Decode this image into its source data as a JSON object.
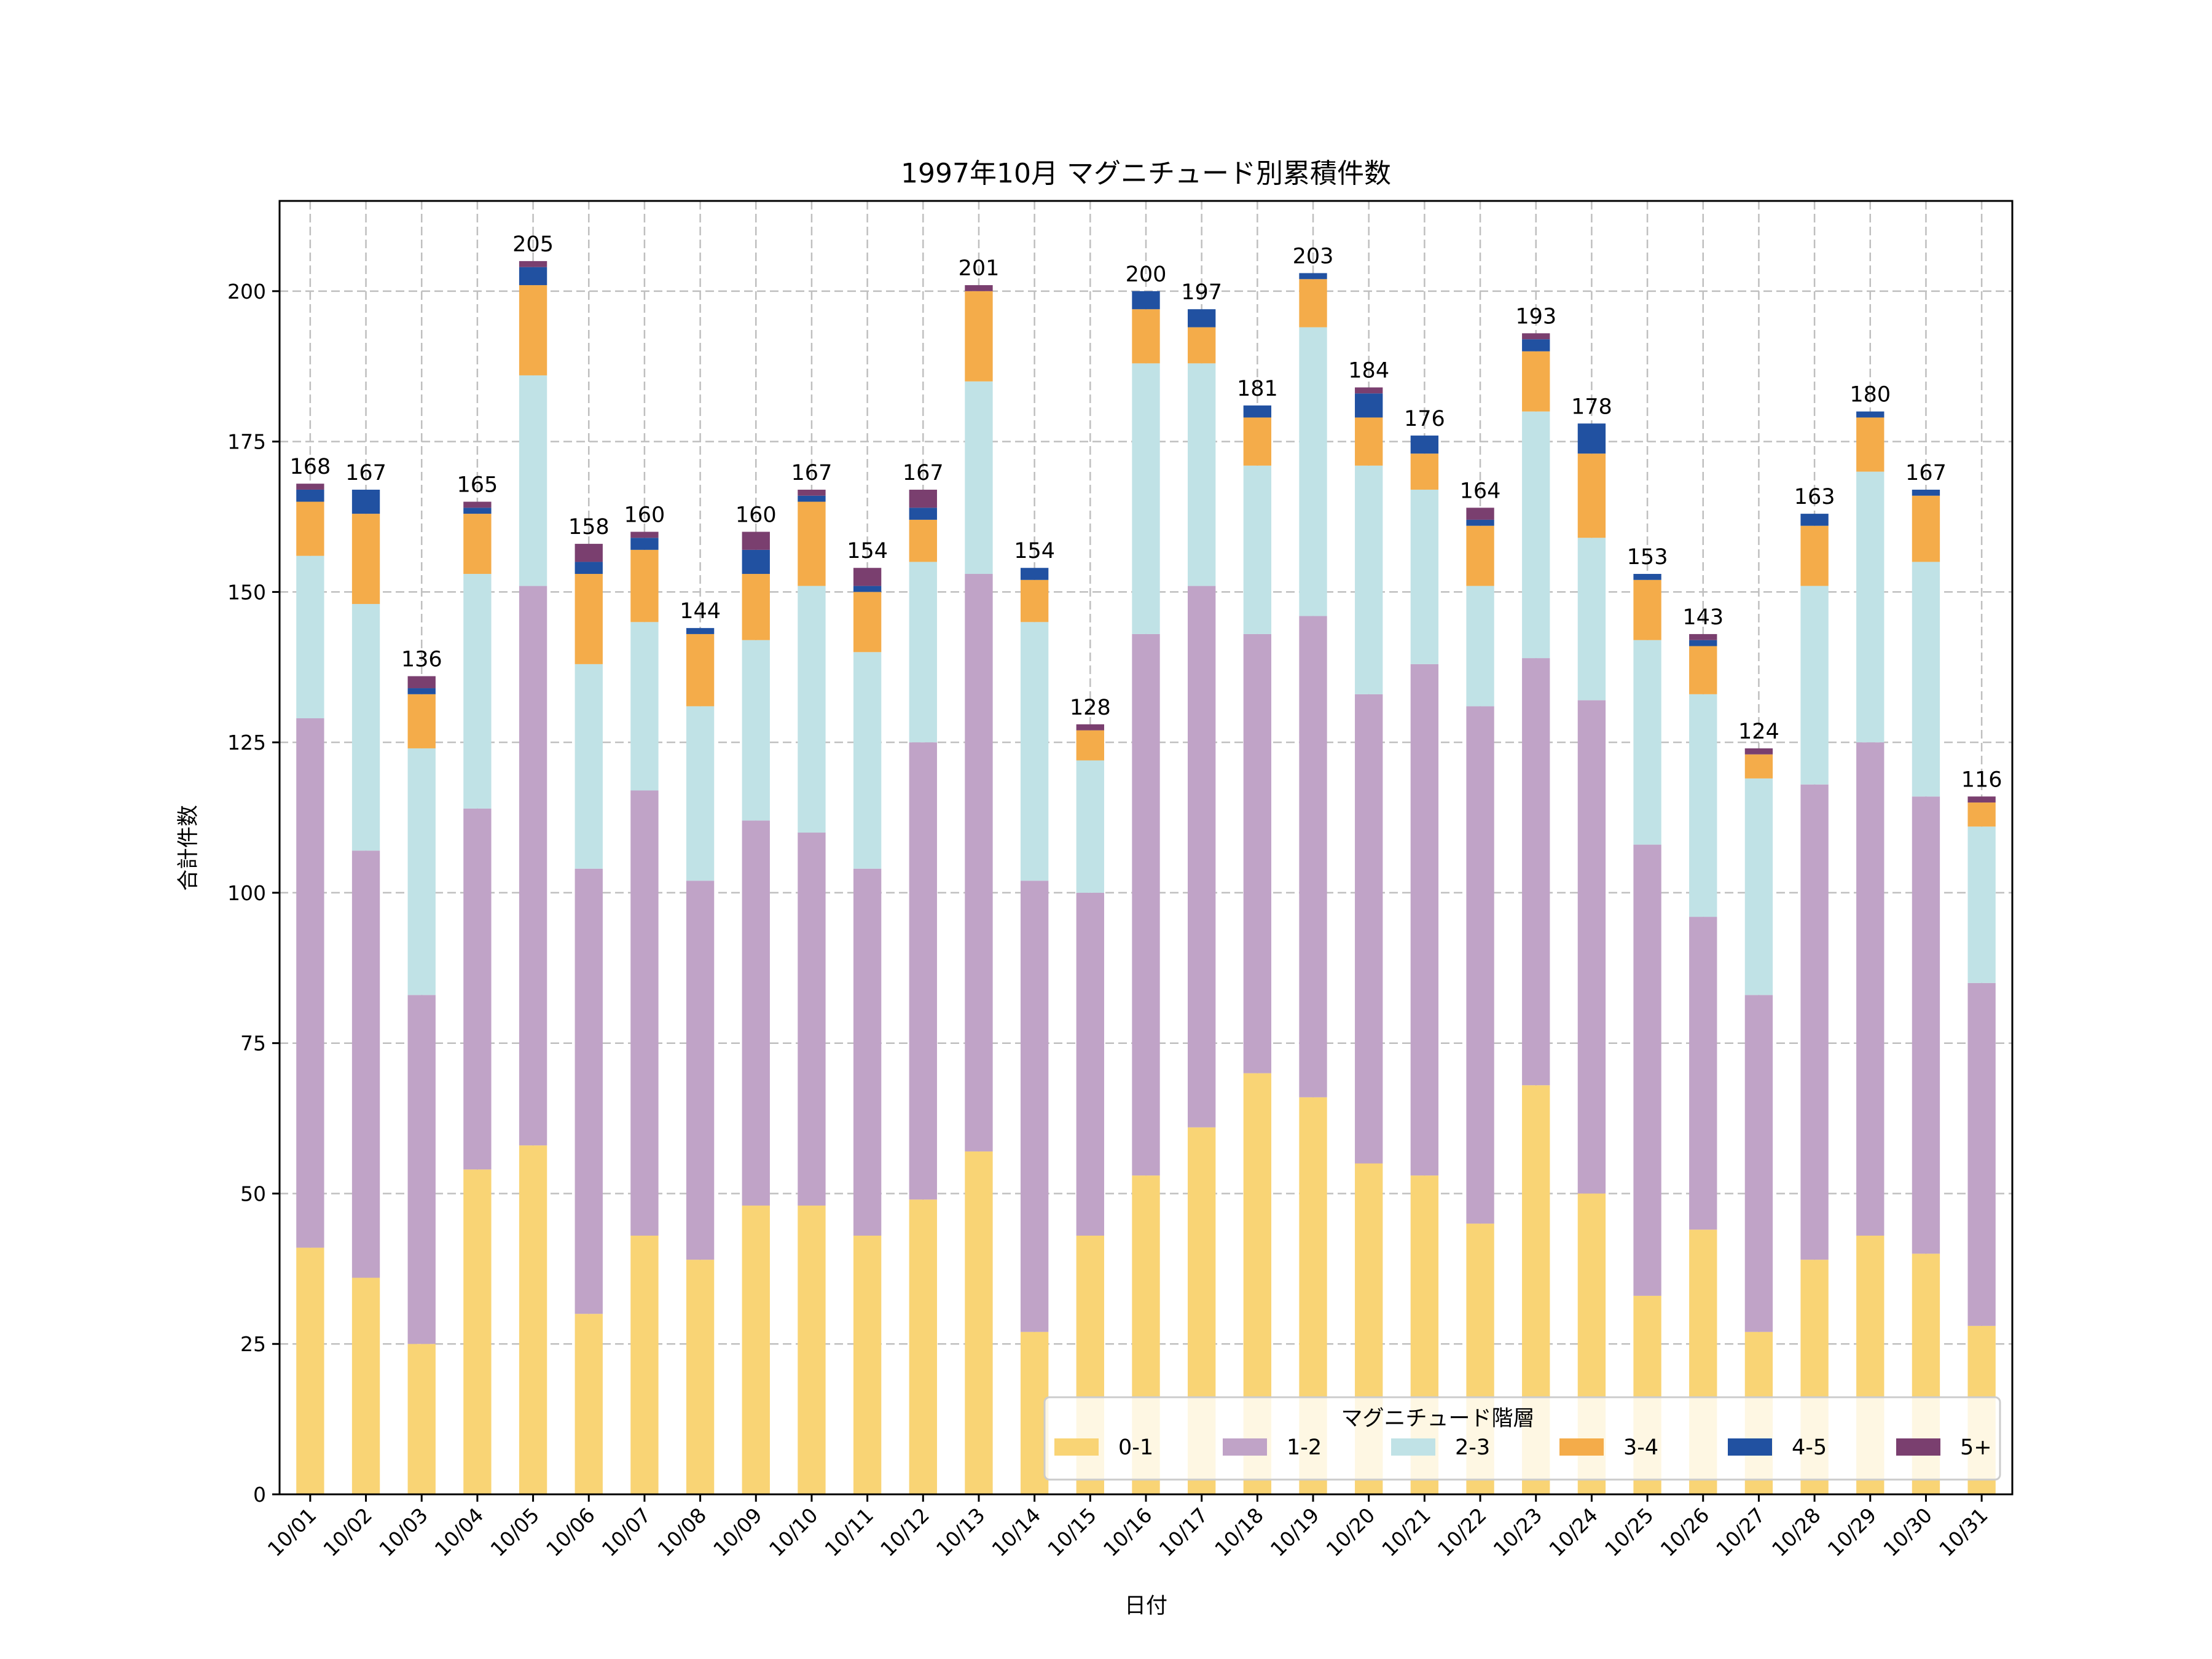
{
  "chart_data": {
    "type": "bar",
    "stacked": true,
    "title": "1997年10月 マグニチュード別累積件数",
    "xlabel": "日付",
    "ylabel": "合計件数",
    "ylim": [
      0,
      215
    ],
    "yticks": [
      0,
      25,
      50,
      75,
      100,
      125,
      150,
      175,
      200
    ],
    "grid": true,
    "categories": [
      "10/01",
      "10/02",
      "10/03",
      "10/04",
      "10/05",
      "10/06",
      "10/07",
      "10/08",
      "10/09",
      "10/10",
      "10/11",
      "10/12",
      "10/13",
      "10/14",
      "10/15",
      "10/16",
      "10/17",
      "10/18",
      "10/19",
      "10/20",
      "10/21",
      "10/22",
      "10/23",
      "10/24",
      "10/25",
      "10/26",
      "10/27",
      "10/28",
      "10/29",
      "10/30",
      "10/31"
    ],
    "series": [
      {
        "name": "0-1",
        "color": "#F9D475",
        "values": [
          41,
          36,
          25,
          54,
          58,
          30,
          43,
          39,
          48,
          48,
          43,
          49,
          57,
          27,
          43,
          53,
          61,
          70,
          66,
          55,
          53,
          45,
          68,
          50,
          33,
          44,
          27,
          39,
          43,
          40,
          28
        ]
      },
      {
        "name": "1-2",
        "color": "#C0A3C7",
        "values": [
          88,
          71,
          58,
          60,
          93,
          74,
          74,
          63,
          64,
          62,
          61,
          76,
          96,
          75,
          57,
          90,
          90,
          73,
          80,
          78,
          85,
          86,
          71,
          82,
          75,
          52,
          56,
          79,
          82,
          76,
          57
        ]
      },
      {
        "name": "2-3",
        "color": "#C0E2E6",
        "values": [
          27,
          41,
          41,
          39,
          35,
          34,
          28,
          29,
          30,
          41,
          36,
          30,
          32,
          43,
          22,
          45,
          37,
          28,
          48,
          38,
          29,
          20,
          41,
          27,
          34,
          37,
          36,
          33,
          45,
          39,
          26
        ]
      },
      {
        "name": "3-4",
        "color": "#F4AC4A",
        "values": [
          9,
          15,
          9,
          10,
          15,
          15,
          12,
          12,
          11,
          14,
          10,
          7,
          15,
          7,
          5,
          9,
          6,
          8,
          8,
          8,
          6,
          10,
          10,
          14,
          10,
          8,
          4,
          10,
          9,
          11,
          4
        ]
      },
      {
        "name": "4-5",
        "color": "#2151A1",
        "values": [
          2,
          4,
          1,
          1,
          3,
          2,
          2,
          1,
          4,
          1,
          1,
          2,
          0,
          2,
          0,
          3,
          3,
          2,
          1,
          4,
          3,
          1,
          2,
          5,
          1,
          1,
          0,
          2,
          1,
          1,
          0
        ]
      },
      {
        "name": "5+",
        "color": "#7A3F6F",
        "values": [
          1,
          0,
          2,
          1,
          1,
          3,
          1,
          0,
          3,
          1,
          3,
          3,
          1,
          0,
          1,
          0,
          0,
          0,
          0,
          1,
          0,
          2,
          1,
          0,
          0,
          1,
          1,
          0,
          0,
          0,
          1
        ]
      }
    ],
    "totals": [
      168,
      167,
      136,
      165,
      205,
      158,
      160,
      144,
      160,
      167,
      154,
      167,
      201,
      154,
      128,
      200,
      197,
      181,
      203,
      184,
      176,
      164,
      193,
      178,
      153,
      143,
      124,
      163,
      180,
      167,
      116
    ],
    "legend": {
      "title": "マグニチュード階層",
      "placement": "lower-right",
      "columns": 6
    }
  }
}
